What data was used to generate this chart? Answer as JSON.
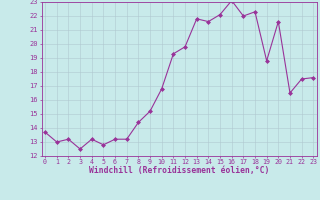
{
  "x": [
    0,
    1,
    2,
    3,
    4,
    5,
    6,
    7,
    8,
    9,
    10,
    11,
    12,
    13,
    14,
    15,
    16,
    17,
    18,
    19,
    20,
    21,
    22,
    23
  ],
  "y": [
    13.7,
    13.0,
    13.2,
    12.5,
    13.2,
    12.8,
    13.2,
    13.2,
    14.4,
    15.2,
    16.8,
    19.3,
    19.8,
    21.8,
    21.6,
    22.1,
    23.1,
    22.0,
    22.3,
    18.8,
    21.6,
    16.5,
    17.5,
    17.6
  ],
  "line_color": "#993399",
  "marker_color": "#993399",
  "bg_color": "#c8eaea",
  "grid_color": "#b0c8d0",
  "xlabel": "Windchill (Refroidissement éolien,°C)",
  "xlabel_color": "#993399",
  "tick_color": "#993399",
  "ylim": [
    12,
    23
  ],
  "yticks": [
    12,
    13,
    14,
    15,
    16,
    17,
    18,
    19,
    20,
    21,
    22,
    23
  ],
  "xticks": [
    0,
    1,
    2,
    3,
    4,
    5,
    6,
    7,
    8,
    9,
    10,
    11,
    12,
    13,
    14,
    15,
    16,
    17,
    18,
    19,
    20,
    21,
    22,
    23
  ],
  "figsize": [
    3.2,
    2.0
  ],
  "dpi": 100
}
